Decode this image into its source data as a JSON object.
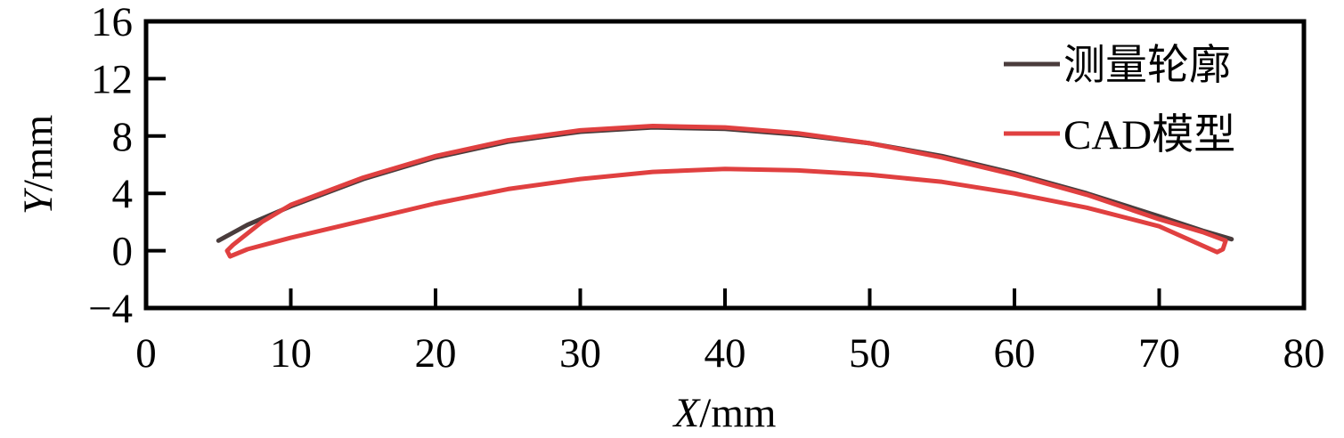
{
  "chart_data": {
    "type": "line",
    "xlabel": {
      "var": "X",
      "unit": "/mm"
    },
    "ylabel": {
      "var": "Y",
      "unit": "/mm"
    },
    "xlim": [
      0,
      80
    ],
    "ylim": [
      -4,
      16
    ],
    "xticks": [
      0,
      10,
      20,
      30,
      40,
      50,
      60,
      70,
      80
    ],
    "yticks": [
      -4,
      0,
      4,
      8,
      12,
      16
    ],
    "grid": false,
    "legend_position": "top-right",
    "series": [
      {
        "name": "测量轮廓",
        "color": "#4a3c3c",
        "x": [
          5,
          7,
          10,
          15,
          20,
          25,
          30,
          35,
          40,
          45,
          50,
          55,
          60,
          65,
          70,
          73,
          75
        ],
        "y": [
          0.7,
          1.8,
          3.1,
          5.0,
          6.5,
          7.6,
          8.3,
          8.6,
          8.5,
          8.1,
          7.5,
          6.6,
          5.4,
          4.0,
          2.4,
          1.4,
          0.8
        ]
      },
      {
        "name": "CAD模型",
        "color": "#e04040",
        "x": [
          6,
          8,
          10,
          15,
          20,
          25,
          30,
          35,
          40,
          45,
          50,
          55,
          60,
          65,
          70,
          73,
          74.6,
          74.4,
          74,
          70,
          65,
          60,
          55,
          50,
          45,
          40,
          35,
          30,
          25,
          20,
          15,
          10,
          7,
          5.8,
          5.6,
          6
        ],
        "y": [
          0.4,
          2.0,
          3.2,
          5.1,
          6.6,
          7.7,
          8.4,
          8.7,
          8.6,
          8.2,
          7.5,
          6.5,
          5.3,
          3.9,
          2.2,
          1.3,
          0.7,
          0.1,
          -0.1,
          1.7,
          3.0,
          4.0,
          4.8,
          5.3,
          5.6,
          5.7,
          5.5,
          5.0,
          4.3,
          3.3,
          2.1,
          0.9,
          0.1,
          -0.4,
          0.0,
          0.4
        ]
      }
    ]
  }
}
